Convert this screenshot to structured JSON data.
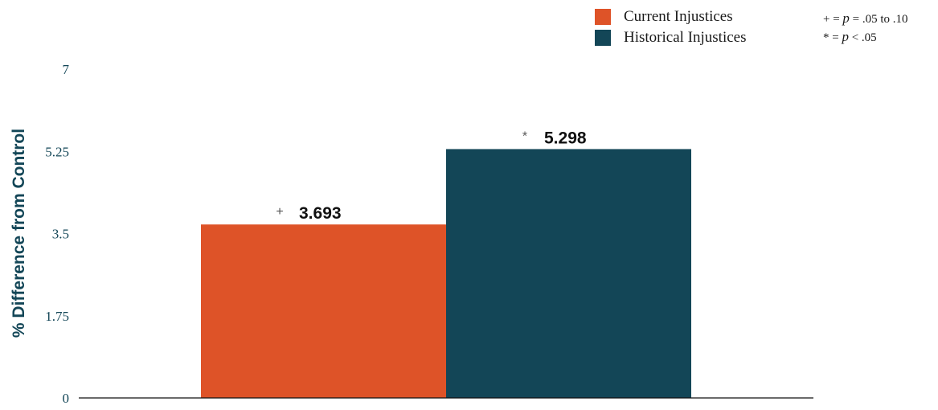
{
  "chart_data": {
    "type": "bar",
    "title": "",
    "xlabel": "",
    "ylabel": "% Difference from Control",
    "ylim": [
      0,
      7
    ],
    "yticks": [
      "0",
      "1.75",
      "3.5",
      "5.25",
      "7"
    ],
    "grid": false,
    "legend_position": "top-right",
    "series": [
      {
        "name": "Current Injustices",
        "value": 3.693,
        "label": "3.693",
        "sig": "+",
        "color": "#DE5328"
      },
      {
        "name": "Historical Injustices",
        "value": 5.298,
        "label": "5.298",
        "sig": "*",
        "color": "#134657"
      }
    ]
  },
  "significance_notes": {
    "line1": {
      "pre": "+ = ",
      "p": "p",
      "post": " = .05 to .10"
    },
    "line2": {
      "pre": "* = ",
      "p": "p",
      "post": " < .05"
    }
  }
}
